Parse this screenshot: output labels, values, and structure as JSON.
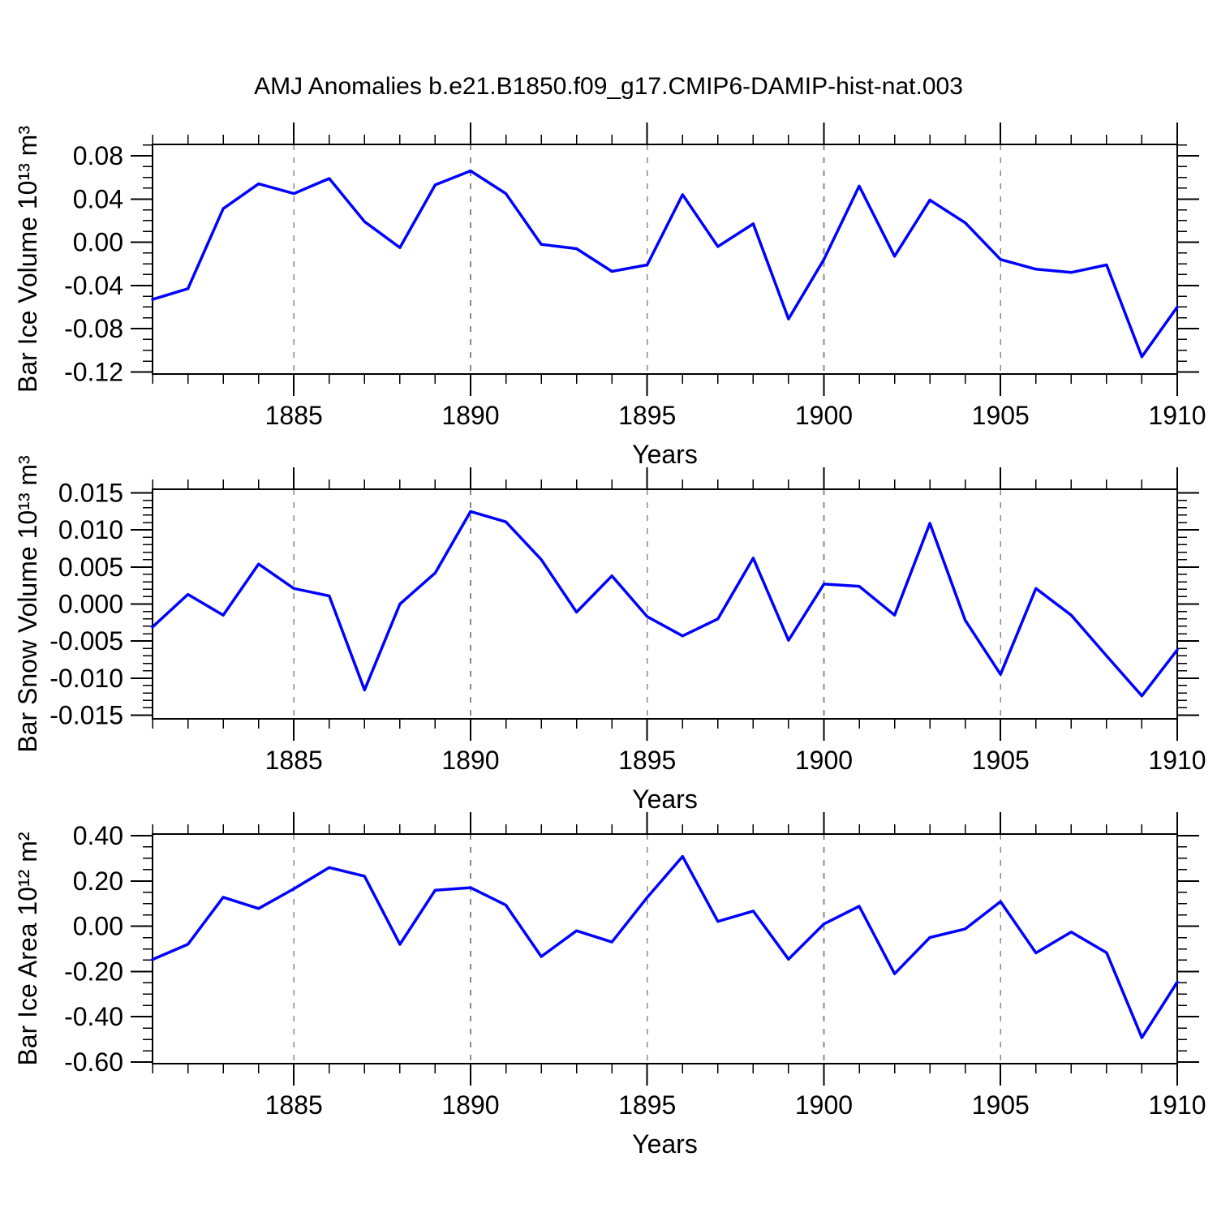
{
  "title": "AMJ Anomalies b.e21.B1850.f09_g17.CMIP6-DAMIP-hist-nat.003",
  "colors": {
    "line": "#0000ff",
    "grid": "#8a8a8a",
    "axis": "#000000",
    "text": "#000000",
    "background": "#ffffff"
  },
  "x_axis": {
    "label": "Years",
    "years": [
      1881,
      1882,
      1883,
      1884,
      1885,
      1886,
      1887,
      1888,
      1889,
      1890,
      1891,
      1892,
      1893,
      1894,
      1895,
      1896,
      1897,
      1898,
      1899,
      1900,
      1901,
      1902,
      1903,
      1904,
      1905,
      1906,
      1907,
      1908,
      1909,
      1910
    ],
    "major_tick_years": [
      1885,
      1890,
      1895,
      1900,
      1905,
      1910
    ],
    "major_tick_labels": [
      "1885",
      "1890",
      "1895",
      "1900",
      "1905",
      "1910"
    ],
    "gridline_years": [
      1885,
      1890,
      1895,
      1900,
      1905
    ]
  },
  "chart_data": [
    {
      "type": "line",
      "name": "ice-volume",
      "ylabel": "Bar Ice Volume 10¹³ m³",
      "ylim": [
        -0.122,
        0.0905
      ],
      "yticks": [
        0.08,
        0.04,
        0.0,
        -0.04,
        -0.08,
        -0.12
      ],
      "ytick_labels": [
        "0.08",
        "0.04",
        "0.00",
        "-0.04",
        "-0.08",
        "-0.12"
      ],
      "y_minor_step": 0.01,
      "values": [
        -0.053,
        -0.043,
        0.031,
        0.054,
        0.045,
        0.059,
        0.019,
        -0.005,
        0.053,
        0.066,
        0.045,
        -0.002,
        -0.006,
        -0.027,
        -0.021,
        0.044,
        -0.004,
        0.017,
        -0.071,
        -0.016,
        0.052,
        -0.013,
        0.039,
        0.018,
        -0.016,
        -0.025,
        -0.028,
        -0.021,
        -0.106,
        -0.06
      ]
    },
    {
      "type": "line",
      "name": "snow-volume",
      "ylabel": "Bar Snow Volume 10¹³ m³",
      "ylim": [
        -0.0155,
        0.0155
      ],
      "yticks": [
        0.015,
        0.01,
        0.005,
        0.0,
        -0.005,
        -0.01,
        -0.015
      ],
      "ytick_labels": [
        "0.015",
        "0.010",
        "0.005",
        "0.000",
        "-0.005",
        "-0.010",
        "-0.015"
      ],
      "y_minor_step": 0.001,
      "values": [
        -0.0031,
        0.0013,
        -0.0015,
        0.0054,
        0.0021,
        0.0011,
        -0.0116,
        0.0,
        0.0042,
        0.0125,
        0.0111,
        0.006,
        -0.0011,
        0.0038,
        -0.0017,
        -0.0043,
        -0.002,
        0.0062,
        -0.0049,
        0.0027,
        0.0024,
        -0.0015,
        0.0109,
        -0.0022,
        -0.0095,
        0.0021,
        -0.0015,
        -0.007,
        -0.0124,
        -0.0062
      ]
    },
    {
      "type": "line",
      "name": "ice-area",
      "ylabel": "Bar Ice Area 10¹² m²",
      "ylim": [
        -0.607,
        0.407
      ],
      "yticks": [
        0.4,
        0.2,
        0.0,
        -0.2,
        -0.4,
        -0.6
      ],
      "ytick_labels": [
        "0.40",
        "0.20",
        "0.00",
        "-0.20",
        "-0.40",
        "-0.60"
      ],
      "y_minor_step": 0.05,
      "values": [
        -0.147,
        -0.08,
        0.128,
        0.078,
        0.165,
        0.259,
        0.221,
        -0.08,
        0.159,
        0.17,
        0.093,
        -0.134,
        -0.02,
        -0.07,
        0.127,
        0.308,
        0.021,
        0.067,
        -0.146,
        0.01,
        0.088,
        -0.21,
        -0.05,
        -0.012,
        0.109,
        -0.118,
        -0.026,
        -0.117,
        -0.492,
        -0.247
      ]
    }
  ]
}
